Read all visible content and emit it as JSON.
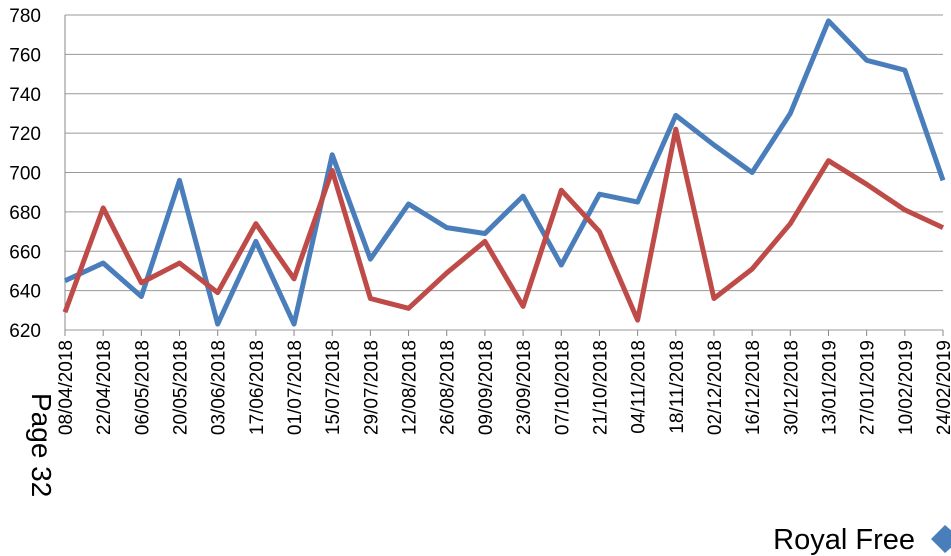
{
  "chart_data": {
    "type": "line",
    "categories": [
      "08/04/2018",
      "22/04/2018",
      "06/05/2018",
      "20/05/2018",
      "03/06/2018",
      "17/06/2018",
      "01/07/2018",
      "15/07/2018",
      "29/07/2018",
      "12/08/2018",
      "26/08/2018",
      "09/09/2018",
      "23/09/2018",
      "07/10/2018",
      "21/10/2018",
      "04/11/2018",
      "18/11/2018",
      "02/12/2018",
      "16/12/2018",
      "30/12/2018",
      "13/01/2019",
      "27/01/2019",
      "10/02/2019",
      "24/02/2019"
    ],
    "series": [
      {
        "name": "Royal Free",
        "color": "#4a7ebb",
        "values": [
          645,
          654,
          637,
          696,
          623,
          665,
          623,
          709,
          656,
          684,
          672,
          669,
          688,
          653,
          689,
          685,
          729,
          714,
          700,
          730,
          777,
          757,
          752,
          696
        ]
      },
      {
        "color": "#be4b48",
        "values": [
          629,
          682,
          644,
          654,
          639,
          674,
          646,
          701,
          636,
          631,
          649,
          665,
          632,
          691,
          670,
          625,
          722,
          636,
          651,
          674,
          706,
          694,
          681,
          672
        ]
      }
    ],
    "ylim": [
      620,
      780
    ],
    "yticks": [
      620,
      640,
      660,
      680,
      700,
      720,
      740,
      760,
      780
    ],
    "grid": true,
    "annotations": [
      "Page 32"
    ]
  }
}
